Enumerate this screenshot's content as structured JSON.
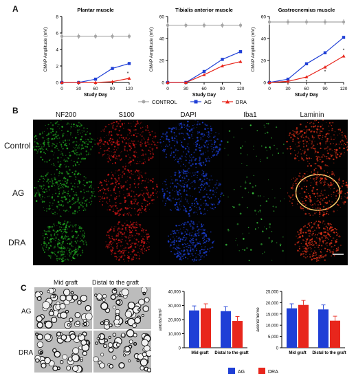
{
  "panel_letters": {
    "a": "A",
    "b": "B",
    "c": "C"
  },
  "legend_a": [
    {
      "label": "CONTROL",
      "color": "#a6a6a6",
      "marker": "circle"
    },
    {
      "label": "AG",
      "color": "#1f3fd6",
      "marker": "square"
    },
    {
      "label": "DRA",
      "color": "#e8261c",
      "marker": "triangle"
    }
  ],
  "panel_b": {
    "columns": [
      "NF200",
      "S100",
      "DAPI",
      "Iba1",
      "Laminin"
    ],
    "rows": [
      "Control",
      "AG",
      "DRA"
    ],
    "column_colors": [
      "#1fa020",
      "#c41616",
      "#1a3ccc",
      "#36c03a",
      "#d83018"
    ]
  },
  "panel_c_images": {
    "columns": [
      "Mid graft",
      "Distal to the graft"
    ],
    "rows": [
      "AG",
      "DRA"
    ]
  },
  "legend_c": [
    {
      "label": "AG",
      "color": "#1f3fd6"
    },
    {
      "label": "DRA",
      "color": "#e8261c"
    }
  ],
  "chart_data": [
    {
      "type": "line",
      "title": "Plantar muscle",
      "xlabel": "Study Day",
      "ylabel": "CMAP Amplitude (mV)",
      "x": [
        0,
        30,
        60,
        90,
        120
      ],
      "ylim": [
        0,
        8
      ],
      "yticks": [
        0,
        2,
        4,
        6,
        8
      ],
      "series": [
        {
          "name": "CONTROL",
          "values": [
            5.6,
            5.6,
            5.6,
            5.6,
            5.6
          ]
        },
        {
          "name": "AG",
          "values": [
            0,
            0,
            0.4,
            1.7,
            2.3
          ]
        },
        {
          "name": "DRA",
          "values": [
            0,
            0,
            0,
            0.1,
            0.5
          ]
        }
      ],
      "annotations": [
        "*"
      ]
    },
    {
      "type": "line",
      "title": "Tibialis anterior muscle",
      "xlabel": "Study Day",
      "ylabel": "CMAP Amplitude (mV)",
      "x": [
        0,
        30,
        60,
        90,
        120
      ],
      "ylim": [
        0,
        60
      ],
      "yticks": [
        0,
        20,
        40,
        60
      ],
      "series": [
        {
          "name": "CONTROL",
          "values": [
            52,
            52,
            52,
            52,
            52
          ]
        },
        {
          "name": "AG",
          "values": [
            0,
            0,
            10,
            21,
            28
          ]
        },
        {
          "name": "DRA",
          "values": [
            0,
            0,
            7,
            15,
            19
          ]
        }
      ]
    },
    {
      "type": "line",
      "title": "Gastrocnemius muscle",
      "xlabel": "Study Day",
      "ylabel": "CMAP Amplitude (mV)",
      "x": [
        0,
        30,
        60,
        90,
        120
      ],
      "ylim": [
        0,
        60
      ],
      "yticks": [
        0,
        20,
        40,
        60
      ],
      "series": [
        {
          "name": "CONTROL",
          "values": [
            55,
            55,
            55,
            55,
            55
          ]
        },
        {
          "name": "AG",
          "values": [
            0,
            3,
            17,
            27,
            41
          ]
        },
        {
          "name": "DRA",
          "values": [
            0,
            1,
            5,
            14,
            24
          ]
        }
      ],
      "annotations": [
        "*",
        "*",
        "*"
      ]
    },
    {
      "type": "bar",
      "ylabel": "axons/mm²",
      "categories": [
        "Mid graft",
        "Distal to the graft"
      ],
      "ylim": [
        0,
        40000
      ],
      "yticks": [
        "0",
        "10,000",
        "20,000",
        "30,000",
        "40,000"
      ],
      "series": [
        {
          "name": "AG",
          "values": [
            26500,
            26000
          ]
        },
        {
          "name": "DRA",
          "values": [
            28000,
            19000
          ]
        }
      ]
    },
    {
      "type": "bar",
      "ylabel": "axons/nerve",
      "categories": [
        "Mid graft",
        "Distal to the graft"
      ],
      "ylim": [
        0,
        25000
      ],
      "yticks": [
        "0",
        "5,000",
        "10,000",
        "15,000",
        "20,000",
        "25,000"
      ],
      "series": [
        {
          "name": "AG",
          "values": [
            17500,
            17000
          ]
        },
        {
          "name": "DRA",
          "values": [
            19000,
            12000
          ]
        }
      ]
    }
  ]
}
